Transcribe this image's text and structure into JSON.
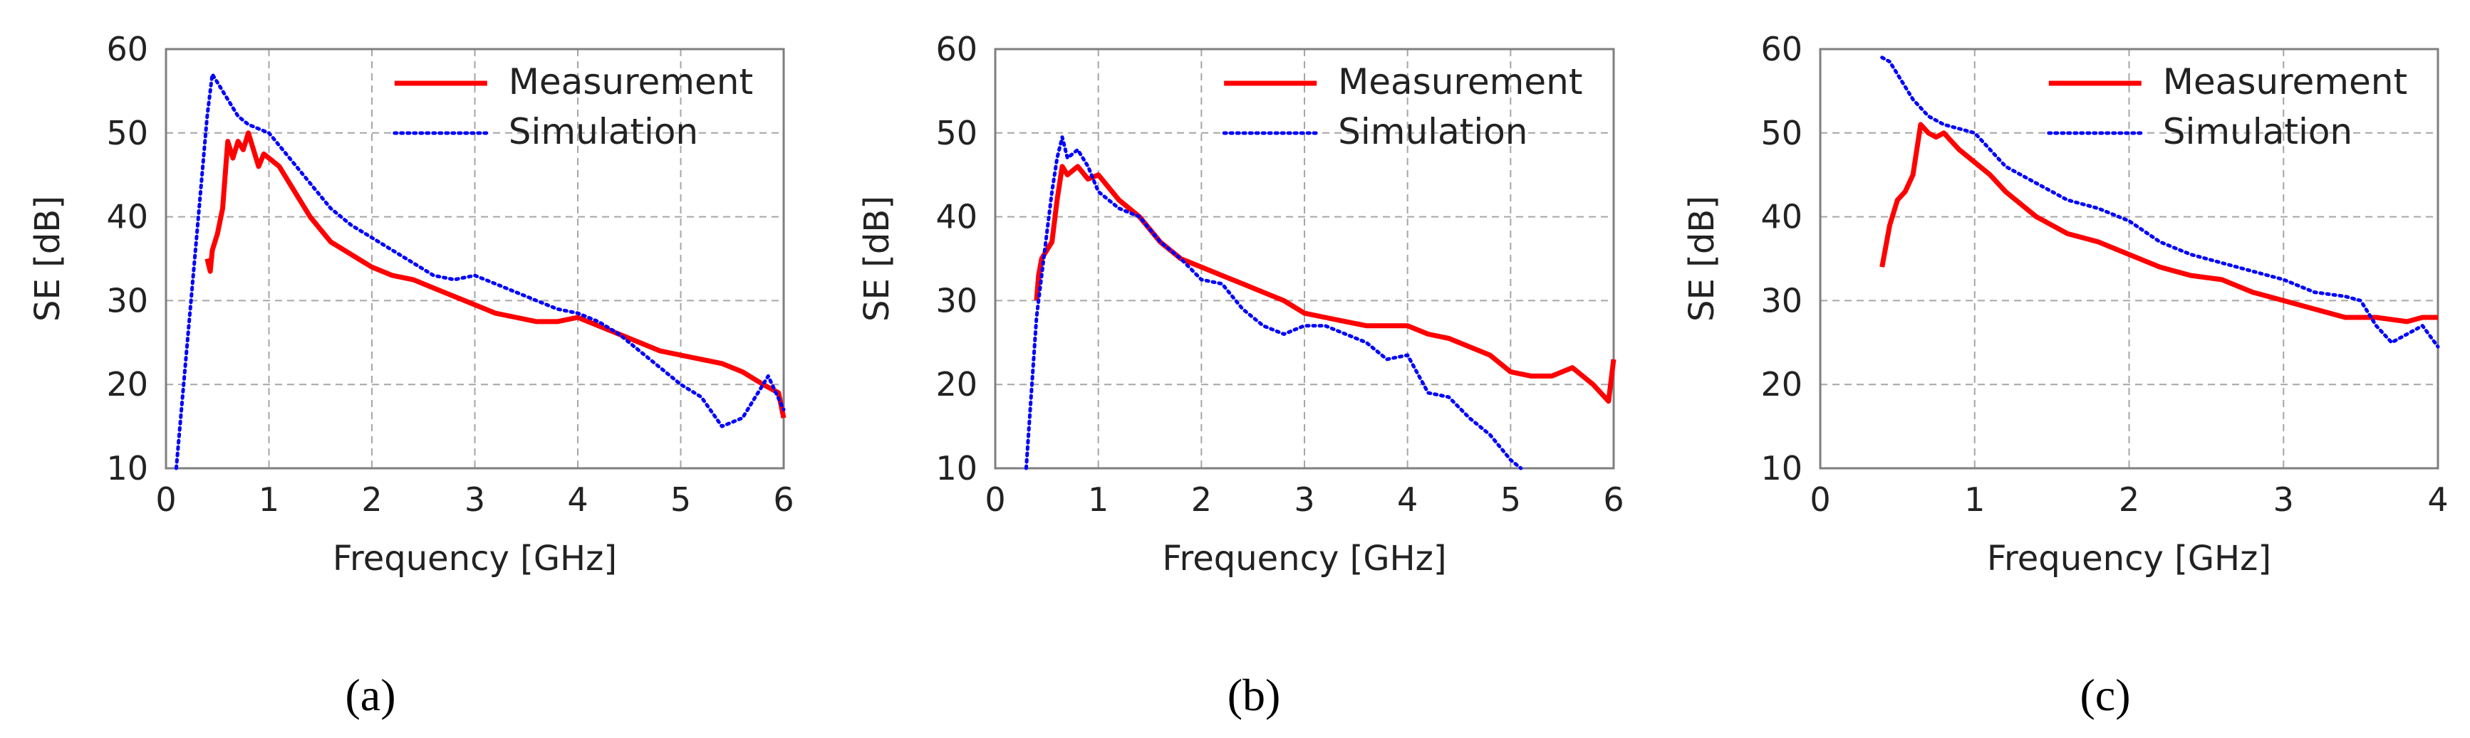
{
  "colors": {
    "measurement": "#ff0000",
    "simulation": "#0000ff",
    "grid": "#a6a6a6",
    "frame": "#7f7f7f"
  },
  "chart_data": [
    {
      "type": "line",
      "caption": {
        "open": "(",
        "letter": "a",
        "close": ")"
      },
      "title": "",
      "xlabel": "Frequency [GHz]",
      "ylabel": "SE [dB]",
      "xlim": [
        0,
        6
      ],
      "ylim": [
        10,
        60
      ],
      "xticks": [
        0,
        1,
        2,
        3,
        4,
        5,
        6
      ],
      "yticks": [
        10,
        20,
        30,
        40,
        50,
        60
      ],
      "grid": true,
      "legend": "top-right",
      "series": [
        {
          "name": "Measurement",
          "style": "solid",
          "x": [
            0.4,
            0.43,
            0.45,
            0.5,
            0.55,
            0.6,
            0.65,
            0.7,
            0.75,
            0.8,
            0.85,
            0.9,
            0.95,
            1.0,
            1.1,
            1.2,
            1.4,
            1.6,
            1.8,
            2.0,
            2.2,
            2.4,
            2.6,
            2.8,
            3.0,
            3.2,
            3.4,
            3.6,
            3.8,
            4.0,
            4.2,
            4.4,
            4.6,
            4.8,
            5.0,
            5.2,
            5.4,
            5.6,
            5.8,
            5.95,
            6.0
          ],
          "y": [
            35,
            33.5,
            36,
            38,
            41,
            49,
            47,
            49,
            48,
            50,
            48,
            46,
            47.5,
            47,
            46,
            44,
            40,
            37,
            35.5,
            34,
            33,
            32.5,
            31.5,
            30.5,
            29.5,
            28.5,
            28,
            27.5,
            27.5,
            28,
            27,
            26,
            25,
            24,
            23.5,
            23,
            22.5,
            21.5,
            20,
            19,
            16
          ]
        },
        {
          "name": "Simulation",
          "style": "dotted",
          "x": [
            0.1,
            0.2,
            0.3,
            0.4,
            0.45,
            0.5,
            0.6,
            0.7,
            0.8,
            0.9,
            1.0,
            1.2,
            1.4,
            1.6,
            1.8,
            2.0,
            2.2,
            2.4,
            2.6,
            2.8,
            3.0,
            3.2,
            3.4,
            3.6,
            3.8,
            4.0,
            4.2,
            4.4,
            4.6,
            4.8,
            5.0,
            5.2,
            5.4,
            5.6,
            5.8,
            5.85,
            6.0
          ],
          "y": [
            10,
            24,
            38,
            52,
            57,
            56,
            54,
            52,
            51,
            50.5,
            50,
            47,
            44,
            41,
            39,
            37.5,
            36,
            34.5,
            33,
            32.5,
            33,
            32,
            31,
            30,
            29,
            28.5,
            27.5,
            26,
            24,
            22,
            20,
            18.5,
            15,
            16,
            20,
            21,
            17
          ]
        }
      ]
    },
    {
      "type": "line",
      "caption": {
        "open": "(",
        "letter": "b",
        "close": ")"
      },
      "title": "",
      "xlabel": "Frequency [GHz]",
      "ylabel": "SE [dB]",
      "xlim": [
        0,
        6
      ],
      "ylim": [
        10,
        60
      ],
      "xticks": [
        0,
        1,
        2,
        3,
        4,
        5,
        6
      ],
      "yticks": [
        10,
        20,
        30,
        40,
        50,
        60
      ],
      "grid": true,
      "legend": "top-right",
      "series": [
        {
          "name": "Measurement",
          "style": "solid",
          "x": [
            0.4,
            0.42,
            0.45,
            0.5,
            0.55,
            0.6,
            0.65,
            0.7,
            0.8,
            0.9,
            1.0,
            1.2,
            1.4,
            1.6,
            1.8,
            2.0,
            2.2,
            2.4,
            2.6,
            2.8,
            3.0,
            3.2,
            3.4,
            3.6,
            3.8,
            4.0,
            4.2,
            4.4,
            4.6,
            4.8,
            5.0,
            5.2,
            5.4,
            5.6,
            5.8,
            5.95,
            6.0
          ],
          "y": [
            30,
            33,
            35,
            36,
            37,
            42,
            46,
            45,
            46,
            44.5,
            45,
            42,
            40,
            37,
            35,
            34,
            33,
            32,
            31,
            30,
            28.5,
            28,
            27.5,
            27,
            27,
            27,
            26,
            25.5,
            24.5,
            23.5,
            21.5,
            21,
            21,
            22,
            20,
            18,
            23
          ]
        },
        {
          "name": "Simulation",
          "style": "dotted",
          "x": [
            0.3,
            0.4,
            0.5,
            0.55,
            0.6,
            0.65,
            0.7,
            0.8,
            0.9,
            1.0,
            1.2,
            1.4,
            1.6,
            1.8,
            2.0,
            2.2,
            2.4,
            2.6,
            2.8,
            3.0,
            3.2,
            3.4,
            3.6,
            3.8,
            4.0,
            4.2,
            4.4,
            4.6,
            4.8,
            5.0,
            5.1
          ],
          "y": [
            10,
            28,
            38,
            43,
            47,
            49.5,
            47,
            48,
            46,
            43,
            41,
            40,
            37,
            35,
            32.5,
            32,
            29,
            27,
            26,
            27,
            27,
            26,
            25,
            23,
            23.5,
            19,
            18.5,
            16,
            14,
            11,
            10
          ]
        }
      ]
    },
    {
      "type": "line",
      "caption": {
        "open": "(",
        "letter": "c",
        "close": ")"
      },
      "title": "",
      "xlabel": "Frequency [GHz]",
      "ylabel": "SE [dB]",
      "xlim": [
        0,
        4
      ],
      "ylim": [
        10,
        60
      ],
      "xticks": [
        0,
        1,
        2,
        3,
        4
      ],
      "yticks": [
        10,
        20,
        30,
        40,
        50,
        60
      ],
      "grid": true,
      "legend": "top-right",
      "series": [
        {
          "name": "Measurement",
          "style": "solid",
          "x": [
            0.4,
            0.42,
            0.45,
            0.5,
            0.55,
            0.6,
            0.65,
            0.7,
            0.75,
            0.8,
            0.85,
            0.9,
            1.0,
            1.1,
            1.2,
            1.4,
            1.6,
            1.8,
            2.0,
            2.2,
            2.4,
            2.6,
            2.8,
            3.0,
            3.2,
            3.4,
            3.6,
            3.8,
            3.9,
            4.0
          ],
          "y": [
            34,
            36,
            39,
            42,
            43,
            45,
            51,
            50,
            49.5,
            50,
            49,
            48,
            46.5,
            45,
            43,
            40,
            38,
            37,
            35.5,
            34,
            33,
            32.5,
            31,
            30,
            29,
            28,
            28,
            27.5,
            28,
            28
          ]
        },
        {
          "name": "Simulation",
          "style": "dotted",
          "x": [
            0.4,
            0.45,
            0.5,
            0.6,
            0.7,
            0.8,
            0.9,
            1.0,
            1.2,
            1.4,
            1.6,
            1.8,
            2.0,
            2.2,
            2.4,
            2.6,
            2.8,
            3.0,
            3.2,
            3.4,
            3.5,
            3.6,
            3.7,
            3.8,
            3.9,
            4.0
          ],
          "y": [
            59,
            58.5,
            57,
            54,
            52,
            51,
            50.5,
            50,
            46,
            44,
            42,
            41,
            39.5,
            37,
            35.5,
            34.5,
            33.5,
            32.5,
            31,
            30.5,
            30,
            27,
            25,
            26,
            27,
            24.5
          ]
        }
      ]
    }
  ]
}
